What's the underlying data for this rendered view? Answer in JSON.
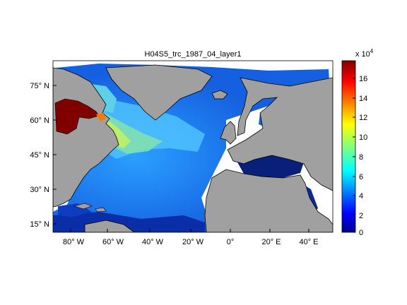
{
  "figure": {
    "title": "H04S5_trc_1987_04_layer1"
  },
  "map": {
    "lat_ticks": [
      "75° N",
      "60° N",
      "45° N",
      "30° N",
      "15° N"
    ],
    "lon_ticks": [
      "80° W",
      "60° W",
      "40° W",
      "20° W",
      "0°",
      "20° E",
      "40° E"
    ],
    "lon_range": [
      -90,
      48
    ],
    "lat_range": [
      10,
      85
    ],
    "land_color": "#a0a0a0",
    "ocean_palette": "jet"
  },
  "colorbar": {
    "multiplier": "x 10",
    "exponent": "4",
    "ticks": [
      "16",
      "14",
      "12",
      "10",
      "8",
      "6",
      "4",
      "2",
      "0"
    ],
    "min": 0,
    "max": 17.5,
    "colors": [
      "#00008f",
      "#0000ff",
      "#00ffff",
      "#ffff00",
      "#ff0000",
      "#800000"
    ]
  }
}
